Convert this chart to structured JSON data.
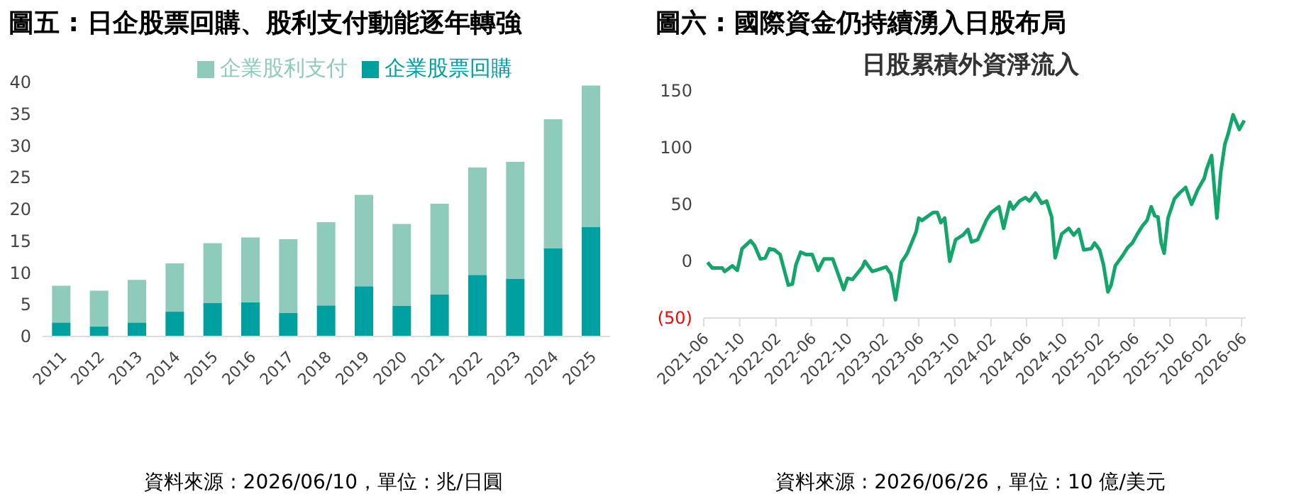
{
  "chart_data": [
    {
      "type": "bar",
      "title": "圖五 : 日企股票回購、股利支付動能逐年轉強",
      "stacked": true,
      "legend": "top",
      "categories": [
        "2011",
        "2012",
        "2013",
        "2014",
        "2015",
        "2016",
        "2017",
        "2018",
        "2019",
        "2020",
        "2021",
        "2022",
        "2023",
        "2024",
        "2025"
      ],
      "series": [
        {
          "name": "企業股票回購",
          "color": "#00a0a0",
          "values": [
            2.2,
            1.6,
            2.2,
            3.9,
            5.3,
            5.4,
            3.7,
            4.9,
            7.9,
            4.8,
            6.6,
            9.7,
            9.1,
            13.9,
            17.2
          ]
        },
        {
          "name": "企業股利支付",
          "color": "#8ecbbb",
          "values": [
            5.8,
            5.6,
            6.7,
            7.6,
            9.4,
            10.2,
            11.6,
            13.1,
            14.4,
            12.9,
            14.3,
            16.9,
            18.4,
            20.3,
            22.3
          ]
        }
      ],
      "ylim": [
        0,
        40
      ],
      "yticks": [
        0,
        5,
        10,
        15,
        20,
        25,
        30,
        35,
        40
      ],
      "grid": false,
      "annotations": [
        "資料來源 : 2026/06/10，單位 : 兆/日圓"
      ]
    },
    {
      "type": "line",
      "title": "圖六 : 國際資金仍持續湧入日股布局",
      "subtitle": "日股累積外資淨流入",
      "x": [
        "2021-06-14",
        "2021-06-30",
        "2021-08-03",
        "2021-08-11",
        "2021-09-06",
        "2021-09-23",
        "2021-10-09",
        "2021-11-07",
        "2021-11-20",
        "2021-12-10",
        "2021-12-27",
        "2022-01-10",
        "2022-01-27",
        "2022-02-15",
        "2022-03-15",
        "2022-03-29",
        "2022-04-10",
        "2022-04-26",
        "2022-05-13",
        "2022-06-04",
        "2022-06-24",
        "2022-07-14",
        "2022-08-13",
        "2022-09-19",
        "2022-10-02",
        "2022-10-19",
        "2022-11-22",
        "2022-11-30",
        "2022-12-25",
        "2023-01-19",
        "2023-02-10",
        "2023-02-26",
        "2023-03-14",
        "2023-04-03",
        "2023-04-23",
        "2023-05-23",
        "2023-06-01",
        "2023-06-12",
        "2023-07-20",
        "2023-08-03",
        "2023-08-15",
        "2023-08-28",
        "2023-09-14",
        "2023-10-04",
        "2023-10-29",
        "2023-11-15",
        "2023-11-27",
        "2023-12-18",
        "2024-01-16",
        "2024-02-02",
        "2024-02-28",
        "2024-03-15",
        "2024-04-05",
        "2024-04-16",
        "2024-05-08",
        "2024-05-28",
        "2024-06-11",
        "2024-07-01",
        "2024-07-22",
        "2024-08-08",
        "2024-08-25",
        "2024-09-06",
        "2024-09-28",
        "2024-10-22",
        "2024-11-08",
        "2024-11-25",
        "2024-12-12",
        "2025-01-06",
        "2025-01-18",
        "2025-02-04",
        "2025-02-17",
        "2025-03-04",
        "2025-03-15",
        "2025-03-29",
        "2025-04-23",
        "2025-05-10",
        "2025-05-26",
        "2025-06-12",
        "2025-06-29",
        "2025-07-15",
        "2025-07-29",
        "2025-08-10",
        "2025-08-21",
        "2025-09-01",
        "2025-09-11",
        "2025-09-24",
        "2025-10-16",
        "2025-11-02",
        "2025-11-23",
        "2025-12-13",
        "2026-01-03",
        "2026-01-25",
        "2026-02-02",
        "2026-02-19",
        "2026-03-09",
        "2026-03-22",
        "2026-04-05",
        "2026-04-16",
        "2026-05-03",
        "2026-05-24",
        "2026-06-10"
      ],
      "series": [
        {
          "color": "#13a66b",
          "values": [
            -1,
            -6,
            -6,
            -9,
            -4,
            -8,
            11,
            18,
            14,
            2,
            3,
            11,
            10,
            6,
            -21,
            -20,
            -3,
            8,
            6,
            6,
            -8,
            2,
            2,
            -25,
            -15,
            -16,
            -5,
            0,
            -9,
            -7,
            -5,
            -11,
            -34,
            -1,
            7,
            26,
            38,
            36,
            43,
            43,
            34,
            38,
            0,
            19,
            23,
            28,
            17,
            19,
            36,
            43,
            48,
            29,
            52,
            46,
            53,
            56,
            53,
            60,
            51,
            53,
            39,
            3,
            24,
            29,
            23,
            28,
            10,
            11,
            16,
            10,
            -3,
            -27,
            -21,
            -4,
            5,
            12,
            16,
            24,
            31,
            36,
            48,
            40,
            39,
            16,
            7,
            38,
            55,
            60,
            65,
            50,
            63,
            73,
            81,
            93,
            38,
            78,
            103,
            112,
            129,
            116,
            124
          ]
        }
      ],
      "xlim": [
        "2021-06-01",
        "2026-06-15"
      ],
      "xticks": [
        "2021-06",
        "2021-10",
        "2022-02",
        "2022-06",
        "2022-10",
        "2023-02",
        "2023-06",
        "2023-10",
        "2024-02",
        "2024-06",
        "2024-10",
        "2025-02",
        "2025-06",
        "2025-10",
        "2026-02",
        "2026-06"
      ],
      "ylim": [
        -50,
        150
      ],
      "yticks": [
        {
          "value": -50,
          "label": "(50)"
        },
        0,
        50,
        100,
        150
      ],
      "grid": false,
      "legend": false,
      "marker": "none",
      "line_style": "solid",
      "annotations": [
        "資料來源 : 2026/06/26，單位 : 10 億/美元"
      ]
    }
  ]
}
